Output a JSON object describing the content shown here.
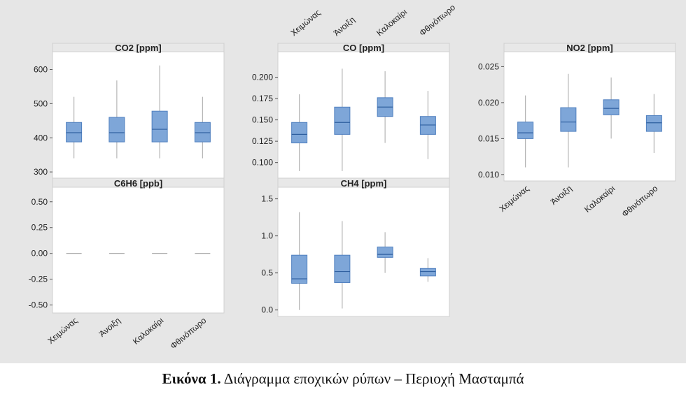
{
  "caption": {
    "label": "Εικόνα 1.",
    "text": "Διάγραμμα εποχικών ρύπων – Περιοχή Μασταμπά"
  },
  "colors": {
    "box_fill": "#7ea6d8",
    "box_stroke": "#4f7fbf",
    "whisker": "#b5b5b5",
    "median": "#2f5f9f",
    "panel_bg": "#ffffff",
    "header_bg": "#e8e8e8"
  },
  "chart_data": [
    {
      "type": "box",
      "title": "CO2 [ppm]",
      "categories": [
        "Χειμώνας",
        "Άνοιξη",
        "Καλοκαίρι",
        "Φθινόπωρο"
      ],
      "show_xticks": false,
      "ylim": [
        290,
        640
      ],
      "yticks": [
        300,
        400,
        500,
        600
      ],
      "yticklabels": [
        "300",
        "400",
        "500",
        "600"
      ],
      "boxes": [
        {
          "min": 340,
          "q1": 388,
          "median": 415,
          "q3": 445,
          "max": 520
        },
        {
          "min": 340,
          "q1": 388,
          "median": 415,
          "q3": 460,
          "max": 568
        },
        {
          "min": 340,
          "q1": 388,
          "median": 425,
          "q3": 478,
          "max": 612
        },
        {
          "min": 340,
          "q1": 388,
          "median": 415,
          "q3": 445,
          "max": 520
        }
      ]
    },
    {
      "type": "box",
      "title": "C6H6 [ppb]",
      "categories": [
        "Χειμώνας",
        "Άνοιξη",
        "Καλοκαίρι",
        "Φθινόπωρο"
      ],
      "show_xticks": true,
      "ylim": [
        -0.55,
        0.6
      ],
      "yticks": [
        -0.5,
        -0.25,
        0.0,
        0.25,
        0.5
      ],
      "yticklabels": [
        "-0.50",
        "-0.25",
        "0.00",
        "0.25",
        "0.50"
      ],
      "boxes": [
        {
          "min": 0,
          "q1": 0,
          "median": 0,
          "q3": 0,
          "max": 0
        },
        {
          "min": 0,
          "q1": 0,
          "median": 0,
          "q3": 0,
          "max": 0
        },
        {
          "min": 0,
          "q1": 0,
          "median": 0,
          "q3": 0,
          "max": 0
        },
        {
          "min": 0,
          "q1": 0,
          "median": 0,
          "q3": 0,
          "max": 0
        }
      ]
    },
    {
      "type": "box",
      "title": "CO [ppm]",
      "categories": [
        "Χειμώνας",
        "Άνοιξη",
        "Καλοκαίρι",
        "Φθινόπωρο"
      ],
      "show_xticks": true,
      "xticks_top": true,
      "ylim": [
        0.085,
        0.225
      ],
      "yticks": [
        0.1,
        0.125,
        0.15,
        0.175,
        0.2
      ],
      "yticklabels": [
        "0.100",
        "0.125",
        "0.150",
        "0.175",
        "0.200"
      ],
      "boxes": [
        {
          "min": 0.09,
          "q1": 0.123,
          "median": 0.133,
          "q3": 0.147,
          "max": 0.18
        },
        {
          "min": 0.09,
          "q1": 0.133,
          "median": 0.147,
          "q3": 0.165,
          "max": 0.21
        },
        {
          "min": 0.123,
          "q1": 0.154,
          "median": 0.165,
          "q3": 0.176,
          "max": 0.207
        },
        {
          "min": 0.104,
          "q1": 0.133,
          "median": 0.144,
          "q3": 0.154,
          "max": 0.184
        }
      ]
    },
    {
      "type": "box",
      "title": "CH4 [ppm]",
      "categories": [
        "Χειμώνας",
        "Άνοιξη",
        "Καλοκαίρι",
        "Φθινόπωρο"
      ],
      "show_xticks": false,
      "ylim": [
        -0.05,
        1.6
      ],
      "yticks": [
        0.0,
        0.5,
        1.0,
        1.5
      ],
      "yticklabels": [
        "0.0",
        "0.5",
        "1.0",
        "1.5"
      ],
      "boxes": [
        {
          "min": 0.0,
          "q1": 0.36,
          "median": 0.42,
          "q3": 0.74,
          "max": 1.32
        },
        {
          "min": 0.02,
          "q1": 0.37,
          "median": 0.52,
          "q3": 0.74,
          "max": 1.2
        },
        {
          "min": 0.5,
          "q1": 0.71,
          "median": 0.75,
          "q3": 0.85,
          "max": 1.05
        },
        {
          "min": 0.38,
          "q1": 0.46,
          "median": 0.52,
          "q3": 0.56,
          "max": 0.7
        }
      ]
    },
    {
      "type": "box",
      "title": "NO2 [ppm]",
      "categories": [
        "Χειμώνας",
        "Άνοιξη",
        "Καλοκαίρι",
        "Φθινόπωρο"
      ],
      "show_xticks": true,
      "ylim": [
        0.0095,
        0.0265
      ],
      "yticks": [
        0.01,
        0.015,
        0.02,
        0.025
      ],
      "yticklabels": [
        "0.010",
        "0.015",
        "0.020",
        "0.025"
      ],
      "boxes": [
        {
          "min": 0.011,
          "q1": 0.015,
          "median": 0.0158,
          "q3": 0.0173,
          "max": 0.021
        },
        {
          "min": 0.011,
          "q1": 0.016,
          "median": 0.0173,
          "q3": 0.0193,
          "max": 0.024
        },
        {
          "min": 0.015,
          "q1": 0.0183,
          "median": 0.0192,
          "q3": 0.0204,
          "max": 0.0235
        },
        {
          "min": 0.013,
          "q1": 0.016,
          "median": 0.0172,
          "q3": 0.0182,
          "max": 0.0212
        }
      ]
    }
  ]
}
